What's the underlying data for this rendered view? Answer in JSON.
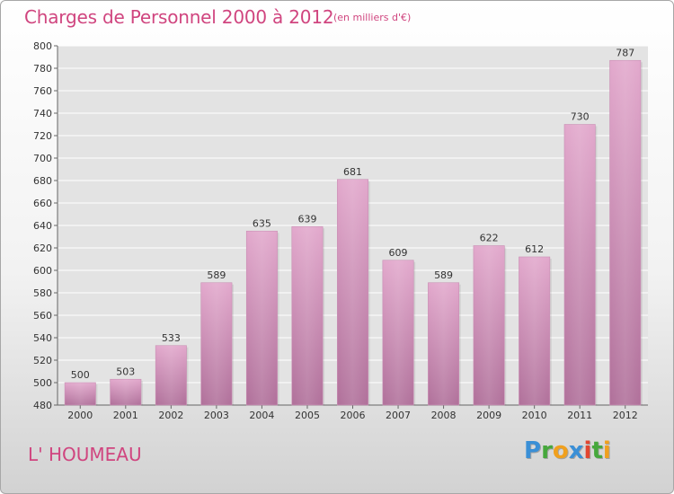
{
  "header": {
    "title": "Charges de Personnel 2000 à 2012",
    "subtitle": "(en milliers d'€)"
  },
  "footer": {
    "commune": "L' HOUMEAU",
    "brand": [
      "P",
      "r",
      "o",
      "x",
      "i",
      "t",
      "i"
    ]
  },
  "colors": {
    "bar_top": "#e2a8cc",
    "bar_bottom": "#b0709a",
    "title": "#d0457f",
    "grid": "#ffffff"
  },
  "chart_data": {
    "type": "bar",
    "title": "Charges de Personnel 2000 à 2012",
    "subtitle": "(en milliers d'€)",
    "categories": [
      "2000",
      "2001",
      "2002",
      "2003",
      "2004",
      "2005",
      "2006",
      "2007",
      "2008",
      "2009",
      "2010",
      "2011",
      "2012"
    ],
    "values": [
      500,
      503,
      533,
      589,
      635,
      639,
      681,
      609,
      589,
      622,
      612,
      730,
      787
    ],
    "ylim": [
      480,
      800
    ],
    "yticks": [
      480,
      500,
      520,
      540,
      560,
      580,
      600,
      620,
      640,
      660,
      680,
      700,
      720,
      740,
      760,
      780,
      800
    ],
    "grid": true,
    "legend": "none"
  }
}
